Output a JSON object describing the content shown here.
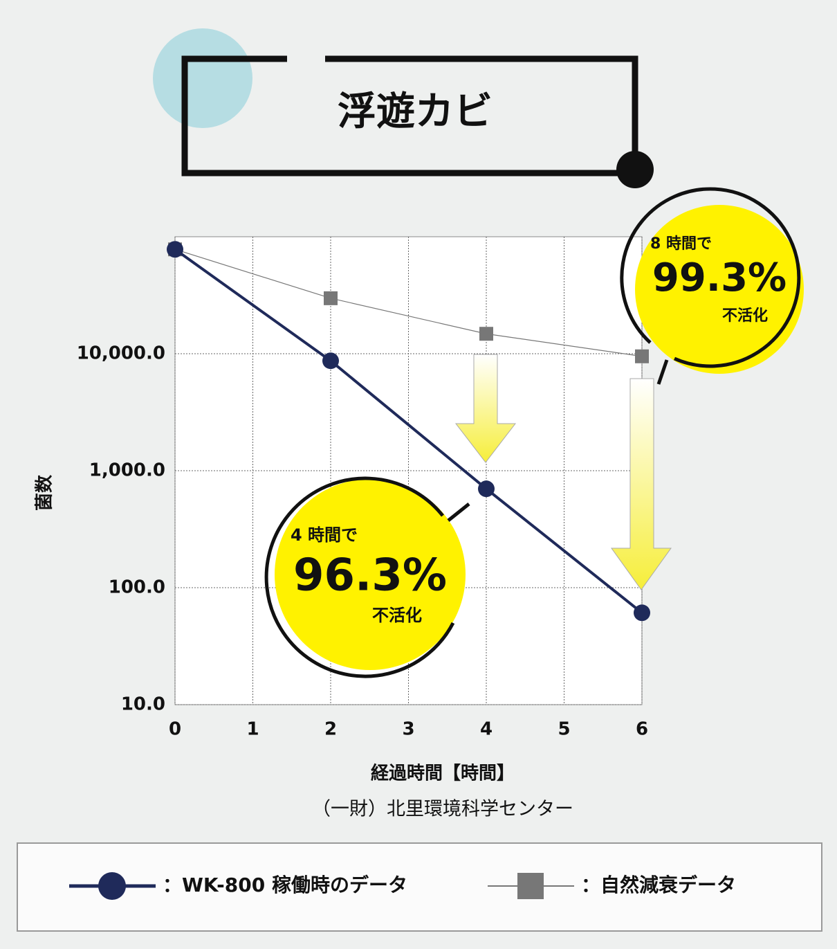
{
  "chart_data": {
    "type": "line",
    "title": "浮遊カビ",
    "ylabel": "菌数",
    "xlabel": "経過時間【時間】",
    "source": "（一財）北里環境科学センター",
    "x": [
      0,
      2,
      4,
      6
    ],
    "series": [
      {
        "name": "：WK-800 稼働時のデータ",
        "color": "#1f2a5a",
        "marker": "circle",
        "values": [
          78000,
          8700,
          700,
          61
        ]
      },
      {
        "name": "：自然減衰データ",
        "color": "#777777",
        "marker": "square",
        "values": [
          78000,
          29800,
          14800,
          9500
        ]
      }
    ],
    "xlim": [
      0,
      6
    ],
    "xticks": [
      0,
      1,
      2,
      3,
      4,
      5,
      6
    ],
    "ylim": [
      10,
      100000
    ],
    "yticks": [
      {
        "value": 10,
        "label": "10.0"
      },
      {
        "value": 100,
        "label": "100.0"
      },
      {
        "value": 1000,
        "label": "1,000.0"
      },
      {
        "value": 10000,
        "label": "10,000.0"
      }
    ],
    "y_scale": "log",
    "grid": true,
    "annotations": [
      {
        "lead": "8 時間で",
        "value": "99.3%",
        "note": "不活化"
      },
      {
        "lead": "4 時間で",
        "value": "96.3%",
        "note": "不活化"
      }
    ]
  }
}
